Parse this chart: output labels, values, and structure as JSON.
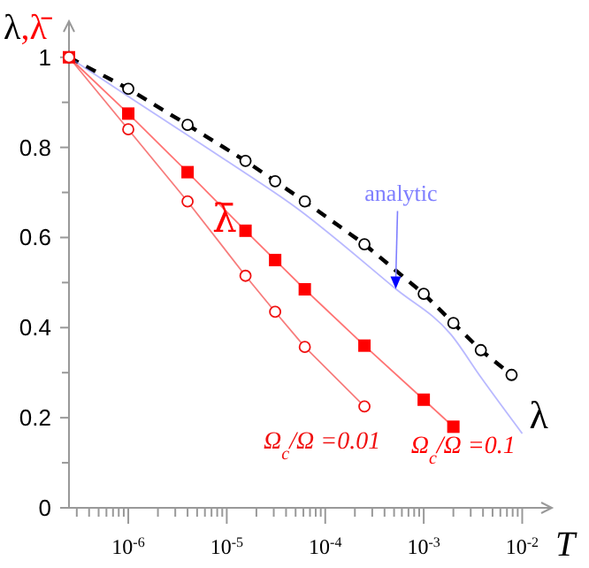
{
  "chart_data": {
    "type": "line",
    "xlabel": "T",
    "ylabel": "λ,λ̄",
    "log": "x",
    "grid": false,
    "xlim": [
      2.5e-07,
      0.02
    ],
    "ylim": [
      0,
      1.08
    ],
    "xticks": [
      {
        "value": 3e-07,
        "label": null
      },
      {
        "value": 4e-07,
        "label": null
      },
      {
        "value": 5e-07,
        "label": null
      },
      {
        "value": 6e-07,
        "label": null
      },
      {
        "value": 7e-07,
        "label": null
      },
      {
        "value": 8e-07,
        "label": null
      },
      {
        "value": 9e-07,
        "label": null
      },
      {
        "value": 1e-06,
        "label": "10$^{-6}$"
      },
      {
        "value": 2e-06,
        "label": null
      },
      {
        "value": 3e-06,
        "label": null
      },
      {
        "value": 4e-06,
        "label": null
      },
      {
        "value": 5e-06,
        "label": null
      },
      {
        "value": 6e-06,
        "label": null
      },
      {
        "value": 7e-06,
        "label": null
      },
      {
        "value": 8e-06,
        "label": null
      },
      {
        "value": 9e-06,
        "label": null
      },
      {
        "value": 1e-05,
        "label": "10$^{-5}$"
      },
      {
        "value": 2e-05,
        "label": null
      },
      {
        "value": 3e-05,
        "label": null
      },
      {
        "value": 4e-05,
        "label": null
      },
      {
        "value": 5e-05,
        "label": null
      },
      {
        "value": 6e-05,
        "label": null
      },
      {
        "value": 7e-05,
        "label": null
      },
      {
        "value": 8e-05,
        "label": null
      },
      {
        "value": 9e-05,
        "label": null
      },
      {
        "value": 0.0001,
        "label": "10$^{-4}$"
      },
      {
        "value": 0.0002,
        "label": null
      },
      {
        "value": 0.0003,
        "label": null
      },
      {
        "value": 0.0004,
        "label": null
      },
      {
        "value": 0.0005,
        "label": null
      },
      {
        "value": 0.0006,
        "label": null
      },
      {
        "value": 0.0007,
        "label": null
      },
      {
        "value": 0.0008,
        "label": null
      },
      {
        "value": 0.0009,
        "label": null
      },
      {
        "value": 0.001,
        "label": "10$^{-3}$"
      },
      {
        "value": 0.002,
        "label": null
      },
      {
        "value": 0.003,
        "label": null
      },
      {
        "value": 0.004,
        "label": null
      },
      {
        "value": 0.005,
        "label": null
      },
      {
        "value": 0.006,
        "label": null
      },
      {
        "value": 0.007,
        "label": null
      },
      {
        "value": 0.008,
        "label": null
      },
      {
        "value": 0.009,
        "label": null
      },
      {
        "value": 0.01,
        "label": "10$^{-2}$"
      }
    ],
    "yticks": [
      0,
      {
        "value": 0.1,
        "label": null
      },
      0.2,
      {
        "value": 0.3,
        "label": null
      },
      0.4,
      {
        "value": 0.5,
        "label": null
      },
      0.6,
      {
        "value": 0.7,
        "label": null
      },
      0.8,
      {
        "value": 0.9,
        "label": null
      },
      1
    ],
    "annotations": [
      "λ̄"
    ],
    "series": [
      {
        "name": "λ",
        "color": "#000000",
        "line_style": "dashed",
        "marker": "circle",
        "x": [
          2.5e-07,
          1e-06,
          4e-06,
          1.55e-05,
          3.1e-05,
          6.2e-05,
          0.00025,
          0.001,
          0.002,
          0.0038,
          0.0078
        ],
        "values": [
          1,
          0.93,
          0.85,
          0.77,
          0.725,
          0.68,
          0.585,
          0.475,
          0.41,
          0.35,
          0.295
        ]
      },
      {
        "name": "analytic",
        "color": "#7f7fff",
        "line_style": "solid",
        "marker": "none",
        "x": [
          2.5e-07,
          1e-06,
          1e-05,
          5e-05,
          0.00052,
          0.0019,
          0.0038,
          0.01
        ],
        "values": [
          1,
          0.913,
          0.77,
          0.667,
          0.486,
          0.384,
          0.29,
          0.165
        ]
      },
      {
        "name": "Ω$_{c}$/Ω =0.1",
        "color": "#ff0000",
        "line_style": "solid",
        "marker": "square",
        "x": [
          2.5e-07,
          1e-06,
          4e-06,
          1.55e-05,
          3.1e-05,
          6.2e-05,
          0.00025,
          0.001,
          0.002
        ],
        "values": [
          1,
          0.875,
          0.745,
          0.615,
          0.55,
          0.485,
          0.36,
          0.24,
          0.18
        ]
      },
      {
        "name": "Ω$_{c}$/Ω =0.01",
        "color": "#f01010",
        "line_style": "solid",
        "marker": "circle",
        "x": [
          2.5e-07,
          1e-06,
          4e-06,
          1.55e-05,
          3.1e-05,
          6.2e-05,
          0.00025
        ],
        "values": [
          1,
          0.84,
          0.68,
          0.515,
          0.435,
          0.357,
          0.225
        ]
      }
    ]
  }
}
